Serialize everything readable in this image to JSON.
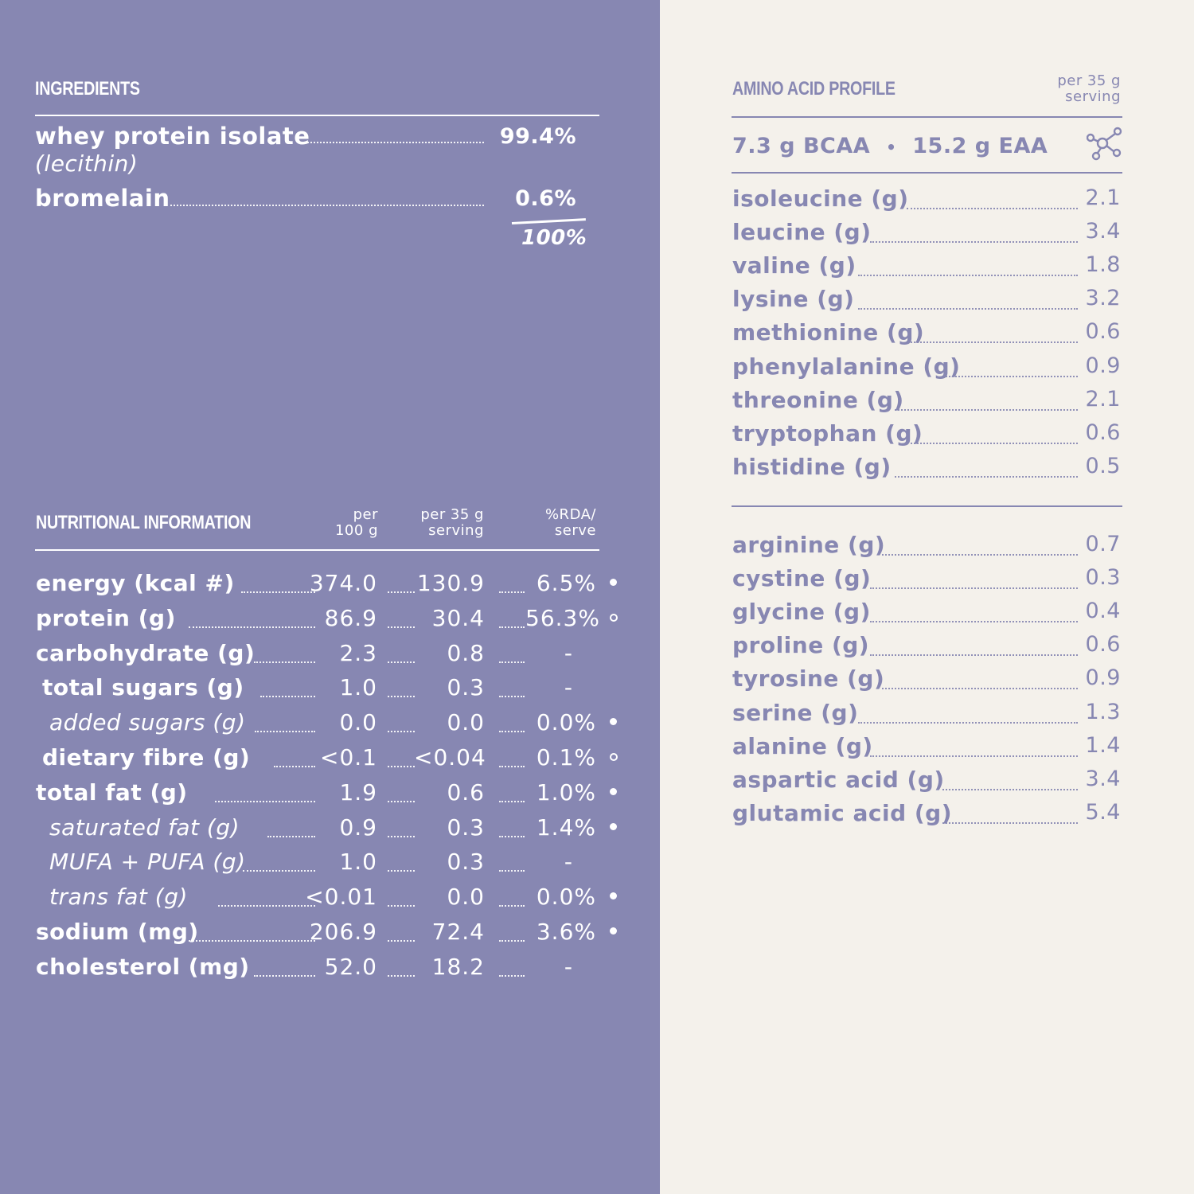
{
  "ingredients": {
    "heading": "INGREDIENTS",
    "items": [
      {
        "name": "whey protein isolate",
        "sub": "(lecithin)",
        "pct": "99.4%"
      },
      {
        "name": "bromelain",
        "sub": "",
        "pct": "0.6%"
      }
    ],
    "total": "100%"
  },
  "nutrition": {
    "heading": "NUTRITIONAL INFORMATION",
    "col1": {
      "line1": "per",
      "line2": "100 g"
    },
    "col2": {
      "line1": "per 35 g",
      "line2": "serving"
    },
    "col3": {
      "line1": "%RDA/",
      "line2": "serve"
    },
    "rows": [
      {
        "label": "energy (kcal #)",
        "per100": "374.0",
        "serving": "130.9",
        "rda": "6.5%",
        "marker": "solid",
        "style": "main"
      },
      {
        "label": "protein (g)",
        "per100": "86.9",
        "serving": "30.4",
        "rda": "56.3%",
        "marker": "open",
        "style": "main"
      },
      {
        "label": "carbohydrate (g)",
        "per100": "2.3",
        "serving": "0.8",
        "rda": "-",
        "marker": "",
        "style": "main"
      },
      {
        "label": "total sugars (g)",
        "per100": "1.0",
        "serving": "0.3",
        "rda": "-",
        "marker": "",
        "style": "indent"
      },
      {
        "label": "added sugars (g)",
        "per100": "0.0",
        "serving": "0.0",
        "rda": "0.0%",
        "marker": "solid",
        "style": "sub"
      },
      {
        "label": "dietary fibre (g)",
        "per100": "<0.1",
        "serving": "<0.04",
        "rda": "0.1%",
        "marker": "open",
        "style": "indent"
      },
      {
        "label": "total fat (g)",
        "per100": "1.9",
        "serving": "0.6",
        "rda": "1.0%",
        "marker": "solid",
        "style": "main"
      },
      {
        "label": "saturated fat (g)",
        "per100": "0.9",
        "serving": "0.3",
        "rda": "1.4%",
        "marker": "solid",
        "style": "sub"
      },
      {
        "label": "MUFA + PUFA (g)",
        "per100": "1.0",
        "serving": "0.3",
        "rda": "-",
        "marker": "",
        "style": "sub"
      },
      {
        "label": "trans fat (g)",
        "per100": "<0.01",
        "serving": "0.0",
        "rda": "0.0%",
        "marker": "solid",
        "style": "sub"
      },
      {
        "label": "sodium (mg)",
        "per100": "206.9",
        "serving": "72.4",
        "rda": "3.6%",
        "marker": "solid",
        "style": "main"
      },
      {
        "label": "cholesterol (mg)",
        "per100": "52.0",
        "serving": "18.2",
        "rda": "-",
        "marker": "",
        "style": "main"
      }
    ]
  },
  "amino": {
    "heading": "AMINO ACID PROFILE",
    "colhead": {
      "line1": "per 35 g",
      "line2": "serving"
    },
    "bcaa": "7.3 g BCAA",
    "separator": "•",
    "eaa": "15.2 g EAA",
    "icon": "molecule-icon",
    "essential": [
      {
        "label": "isoleucine (g)",
        "value": "2.1"
      },
      {
        "label": "leucine (g)",
        "value": "3.4"
      },
      {
        "label": "valine (g)",
        "value": "1.8"
      },
      {
        "label": "lysine (g)",
        "value": "3.2"
      },
      {
        "label": "methionine (g)",
        "value": "0.6"
      },
      {
        "label": "phenylalanine (g)",
        "value": "0.9"
      },
      {
        "label": "threonine (g)",
        "value": "2.1"
      },
      {
        "label": "tryptophan (g)",
        "value": "0.6"
      },
      {
        "label": "histidine (g)",
        "value": "0.5"
      }
    ],
    "nonessential": [
      {
        "label": "arginine (g)",
        "value": "0.7"
      },
      {
        "label": "cystine (g)",
        "value": "0.3"
      },
      {
        "label": "glycine (g)",
        "value": "0.4"
      },
      {
        "label": "proline (g)",
        "value": "0.6"
      },
      {
        "label": "tyrosine (g)",
        "value": "0.9"
      },
      {
        "label": "serine (g)",
        "value": "1.3"
      },
      {
        "label": "alanine (g)",
        "value": "1.4"
      },
      {
        "label": "aspartic acid (g)",
        "value": "3.4"
      },
      {
        "label": "glutamic acid (g)",
        "value": "5.4"
      }
    ]
  },
  "colors": {
    "panel": "#8787b2",
    "background": "#f4f1eb",
    "text_light": "#ffffff"
  }
}
